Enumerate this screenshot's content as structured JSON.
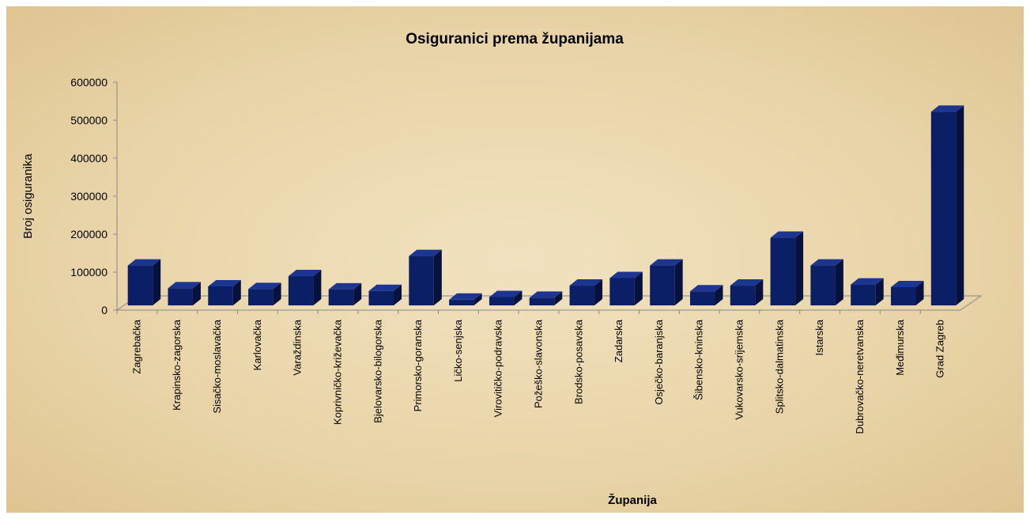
{
  "chart_data": {
    "type": "bar",
    "title": "Osiguranici prema županijama",
    "x_label": "Županija",
    "y_label": "Broj osiguranika",
    "categories": [
      "Zagrebačka",
      "Krapinsko-zagorska",
      "Sisačko-moslavačka",
      "Karlovačka",
      "Varaždinska",
      "Koprivničko-križevačka",
      "Bjelovarsko-bilogorska",
      "Primorsko-goranska",
      "Ličko-senjska",
      "Virovitičko-podravska",
      "Požeško-slavonska",
      "Brodsko-posavska",
      "Zadarska",
      "Osječko-baranjska",
      "Šibensko-kninska",
      "Vukovarsko-srijemska",
      "Splitsko-dalmatinska",
      "Istarska",
      "Dubrovačko-neretvanska",
      "Međimurska",
      "Grad Zagreb"
    ],
    "values": [
      105000,
      45000,
      50000,
      43000,
      77000,
      42000,
      38000,
      130000,
      15000,
      22000,
      20000,
      52000,
      72000,
      105000,
      37000,
      52000,
      178000,
      105000,
      55000,
      48000,
      510000
    ],
    "color": "#0b1f66",
    "ylim": [
      0,
      600000
    ],
    "yticks": [
      0,
      100000,
      200000,
      300000,
      400000,
      500000,
      600000
    ]
  }
}
